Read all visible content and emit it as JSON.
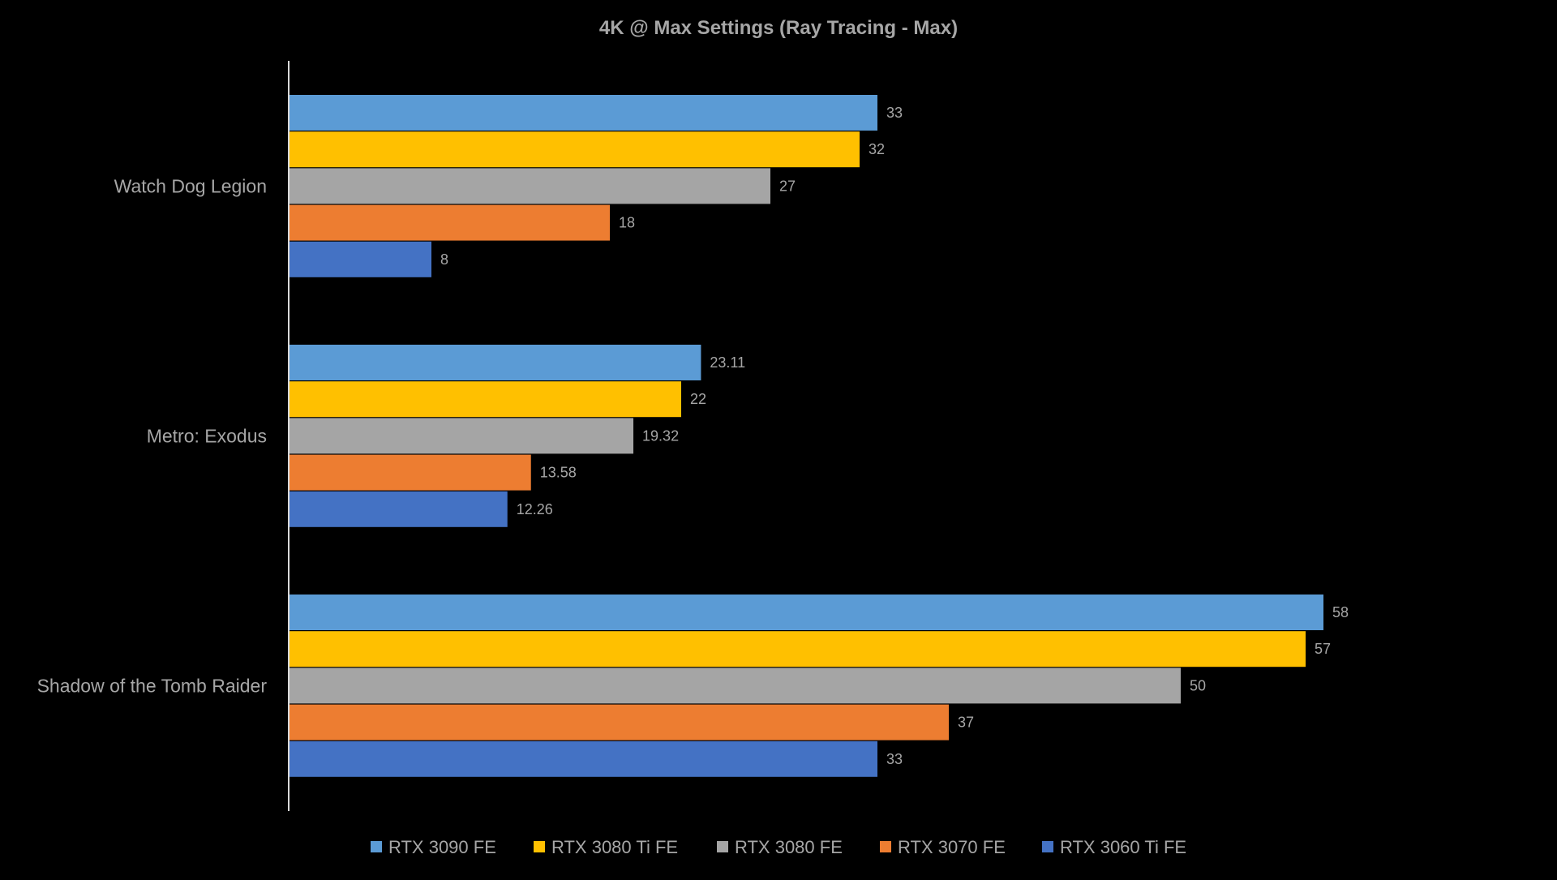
{
  "chart_data": {
    "type": "bar",
    "orientation": "horizontal",
    "title": "4K @ Max Settings (Ray Tracing - Max)",
    "xlabel": "",
    "ylabel": "",
    "categories": [
      "Watch Dog Legion",
      "Metro: Exodus",
      "Shadow of the Tomb Raider"
    ],
    "series": [
      {
        "name": "RTX 3090 FE",
        "color": "#5B9BD5",
        "values": [
          33,
          23.11,
          58
        ]
      },
      {
        "name": "RTX 3080 Ti FE",
        "color": "#FFC000",
        "values": [
          32,
          22,
          57
        ]
      },
      {
        "name": "RTX 3080 FE",
        "color": "#A5A5A5",
        "values": [
          27,
          19.32,
          50
        ]
      },
      {
        "name": "RTX 3070 FE",
        "color": "#ED7D31",
        "values": [
          18,
          13.58,
          37
        ]
      },
      {
        "name": "RTX 3060 Ti FE",
        "color": "#4472C4",
        "values": [
          8,
          12.26,
          33
        ]
      }
    ],
    "value_labels": [
      [
        "33",
        "23.11",
        "58"
      ],
      [
        "32",
        "22",
        "57"
      ],
      [
        "27",
        "19.32",
        "50"
      ],
      [
        "18",
        "13.58",
        "37"
      ],
      [
        "8",
        "12.26",
        "33"
      ]
    ],
    "xlim": [
      0,
      65
    ],
    "grid": false,
    "legend_position": "bottom",
    "background_color": "#000000",
    "text_color": "#A6A6A6",
    "axis_color": "#D9D9D9"
  }
}
